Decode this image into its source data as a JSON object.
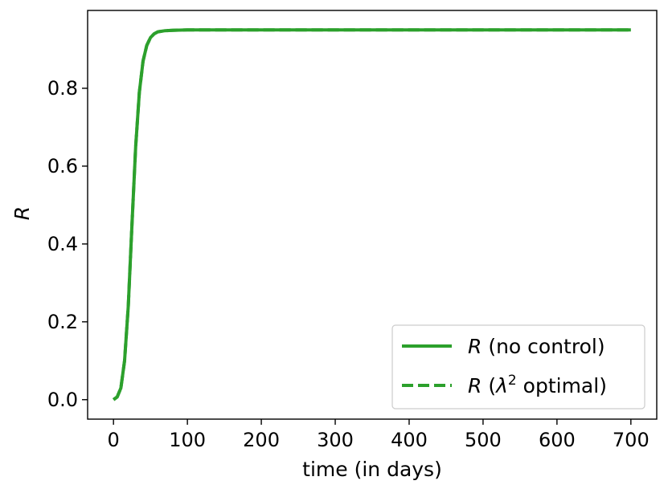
{
  "chart_data": {
    "type": "line",
    "xlabel": "time (in days)",
    "ylabel": "R",
    "xlim": [
      -35,
      735
    ],
    "ylim": [
      -0.05,
      1.0
    ],
    "x_ticks": [
      {
        "value": 0,
        "label": "0"
      },
      {
        "value": 100,
        "label": "100"
      },
      {
        "value": 200,
        "label": "200"
      },
      {
        "value": 300,
        "label": "300"
      },
      {
        "value": 400,
        "label": "400"
      },
      {
        "value": 500,
        "label": "500"
      },
      {
        "value": 600,
        "label": "600"
      },
      {
        "value": 700,
        "label": "700"
      }
    ],
    "y_ticks": [
      {
        "value": 0.0,
        "label": "0.0"
      },
      {
        "value": 0.2,
        "label": "0.2"
      },
      {
        "value": 0.4,
        "label": "0.4"
      },
      {
        "value": 0.6,
        "label": "0.6"
      },
      {
        "value": 0.8,
        "label": "0.8"
      }
    ],
    "grid": false,
    "legend_position": "lower-right",
    "series": [
      {
        "name": "R (no control)",
        "name_italic": "R",
        "name_rest": "(no control)",
        "style": "solid",
        "color": "#2ca02c",
        "x": [
          0,
          5,
          10,
          15,
          20,
          25,
          30,
          35,
          40,
          45,
          50,
          55,
          60,
          70,
          80,
          100,
          150,
          200,
          300,
          400,
          500,
          600,
          700
        ],
        "y": [
          0.0,
          0.007,
          0.03,
          0.1,
          0.24,
          0.45,
          0.65,
          0.79,
          0.87,
          0.91,
          0.93,
          0.94,
          0.945,
          0.948,
          0.949,
          0.95,
          0.95,
          0.95,
          0.95,
          0.95,
          0.95,
          0.95,
          0.95
        ]
      },
      {
        "name": "R (λ2 optimal)",
        "name_italic": "R",
        "name_rest_pre": "(",
        "name_lambda": "λ",
        "name_sup": "2",
        "name_rest_post": " optimal)",
        "style": "dashed",
        "color": "#2ca02c",
        "x": [
          0,
          5,
          10,
          15,
          20,
          25,
          30,
          35,
          40,
          45,
          50,
          55,
          60,
          70,
          80,
          100,
          150,
          200,
          300,
          400,
          500,
          600,
          700
        ],
        "y": [
          0.0,
          0.007,
          0.03,
          0.1,
          0.24,
          0.45,
          0.65,
          0.79,
          0.87,
          0.91,
          0.93,
          0.94,
          0.945,
          0.948,
          0.949,
          0.95,
          0.95,
          0.95,
          0.95,
          0.95,
          0.95,
          0.95,
          0.95
        ]
      }
    ]
  }
}
